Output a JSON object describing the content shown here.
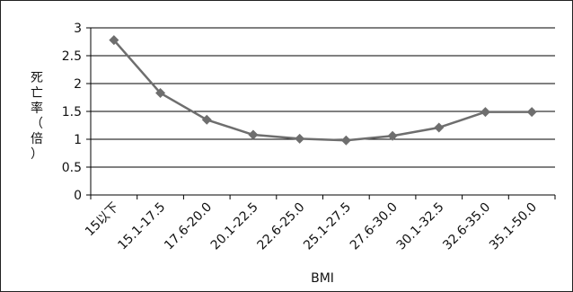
{
  "chart_data": {
    "type": "line",
    "title": "",
    "xlabel": "BMI",
    "ylabel": "死亡率（倍）",
    "categories": [
      "15以下",
      "15.1-17.5",
      "17.6-20.0",
      "20.1-22.5",
      "22.6-25.0",
      "25.1-27.5",
      "27.6-30.0",
      "30.1-32.5",
      "32.6-35.0",
      "35.1-50.0"
    ],
    "series": [
      {
        "values": [
          2.78,
          1.83,
          1.35,
          1.08,
          1.01,
          0.98,
          1.06,
          1.21,
          1.49,
          1.49
        ]
      }
    ],
    "ylim": [
      0,
      3
    ],
    "yticks": [
      "0",
      "0.5",
      "1",
      "1.5",
      "2",
      "2.5",
      "3"
    ],
    "grid": true,
    "legend": "none",
    "colors": {
      "line": "#6e6e6e",
      "marker": "#6e6e6e",
      "grid": "#000000",
      "axis": "#000000"
    }
  }
}
